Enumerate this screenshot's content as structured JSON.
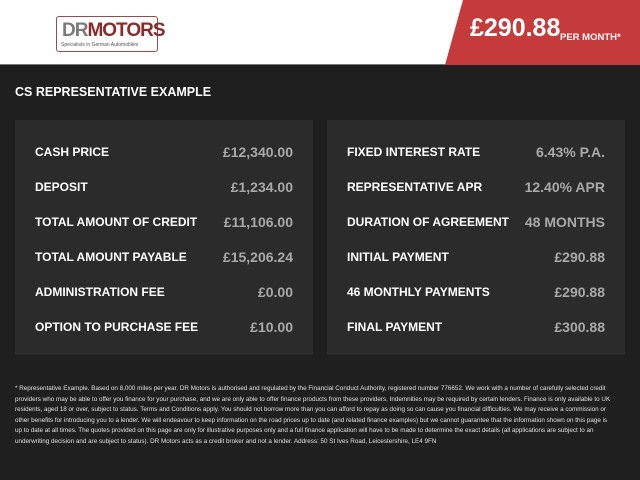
{
  "header": {
    "logo_text": "DRMotors",
    "logo_tagline": "Specialists in German Automobiles",
    "monthly_price": "£290.88",
    "per_month_label": "PER MONTH*",
    "accent_color": "#c53b3c"
  },
  "section_title": "CS REPRESENTATIVE EXAMPLE",
  "left_panel": [
    {
      "label": "CASH PRICE",
      "value": "£12,340.00"
    },
    {
      "label": "DEPOSIT",
      "value": "£1,234.00"
    },
    {
      "label": "TOTAL AMOUNT OF CREDIT",
      "value": "£11,106.00"
    },
    {
      "label": "TOTAL AMOUNT PAYABLE",
      "value": "£15,206.24"
    },
    {
      "label": "ADMINISTRATION FEE",
      "value": "£0.00"
    },
    {
      "label": "OPTION TO PURCHASE FEE",
      "value": "£10.00"
    }
  ],
  "right_panel": [
    {
      "label": "FIXED INTEREST RATE",
      "value": "6.43% P.A."
    },
    {
      "label": "REPRESENTATIVE APR",
      "value": "12.40% APR"
    },
    {
      "label": "DURATION OF AGREEMENT",
      "value": "48 MONTHS"
    },
    {
      "label": "INITIAL PAYMENT",
      "value": "£290.88"
    },
    {
      "label": "46 MONTHLY PAYMENTS",
      "value": "£290.88"
    },
    {
      "label": "FINAL PAYMENT",
      "value": "£300.88"
    }
  ],
  "disclaimer": "* Representative Example. Based on 8,000 miles per year. DR Motors is authorised and regulated by the Financial Conduct Authority, registered number 776652. We work with a number of carefully selected credit providers who may be able to offer you finance for your purchase, and we are only able to offer finance products from these providers. Indemnities may be required by certain lenders. Finance is only available to UK residents, aged 18 or over, subject to status. Terms and Conditions apply. You should not borrow more than you can afford to repay as doing so can cause you financial difficulties. We may receive a commission or other benefits for introducing you to a lender. We will endeavour to keep information on the road prices up to date (and related finance examples) but we cannot guarantee that the information shown on this page is up to date at all times. The quotes provided on this page are only for illustrative purposes only and a full finance application will have to be made to determine the exact details (all applications are subject to an underwriting decision and are subject to status). DR Motors acts as a credit broker and not a lender. Address:  50 St Ives Road, Leicestershire, LE4 9FN"
}
